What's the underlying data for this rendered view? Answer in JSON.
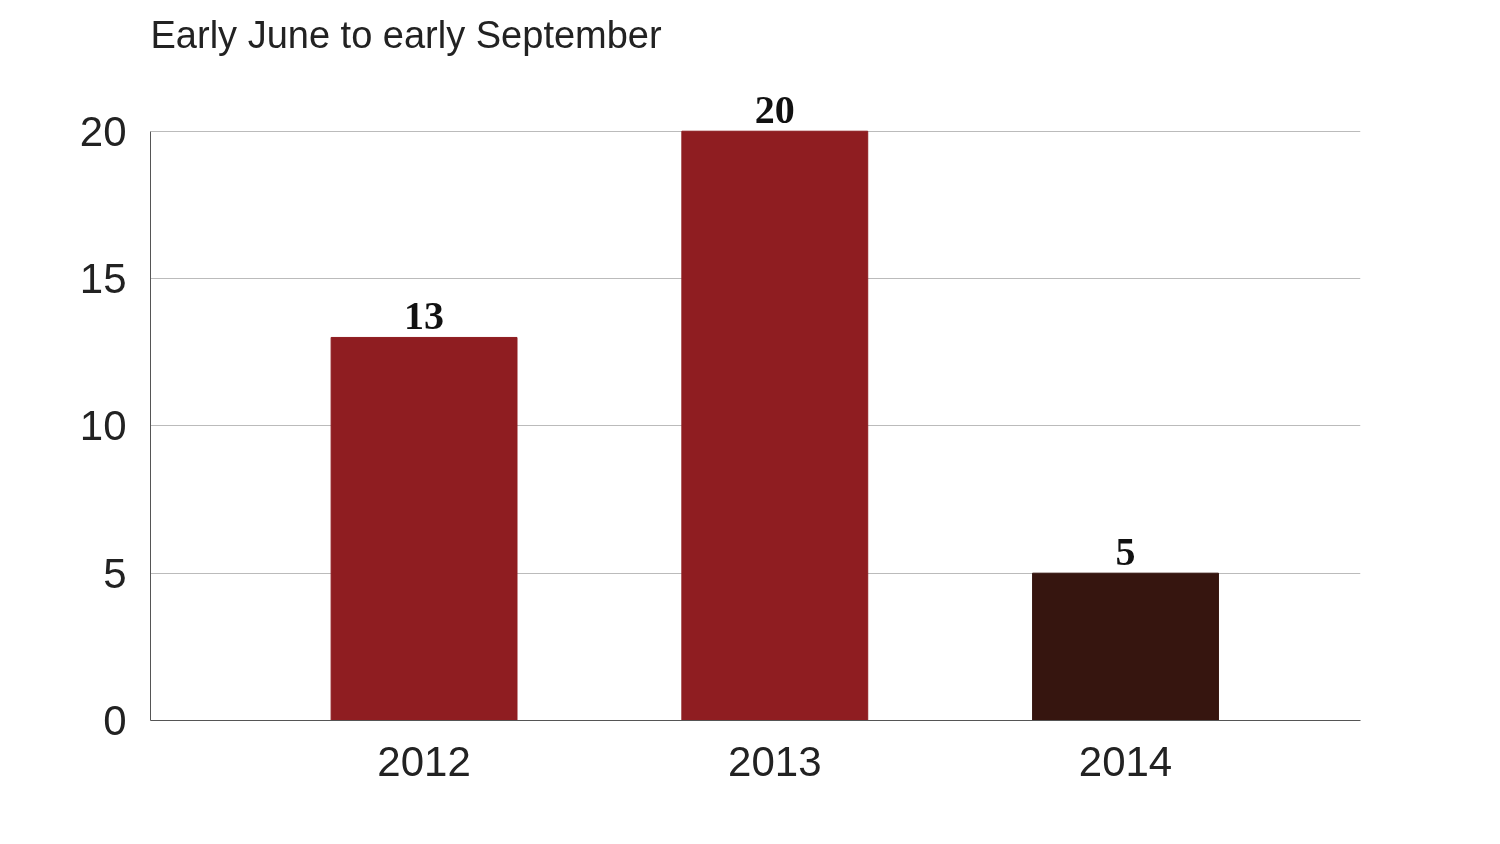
{
  "chart_data": {
    "type": "bar",
    "title": "Early June to early September",
    "categories": [
      "2012",
      "2013",
      "2014"
    ],
    "values": [
      13,
      20,
      5
    ],
    "colors": [
      "#8f1d21",
      "#8f1d21",
      "#36150f"
    ],
    "ylim": [
      0,
      20
    ],
    "yticks": [
      0,
      5,
      10,
      15,
      20
    ],
    "grid": "y",
    "data_labels": true
  }
}
